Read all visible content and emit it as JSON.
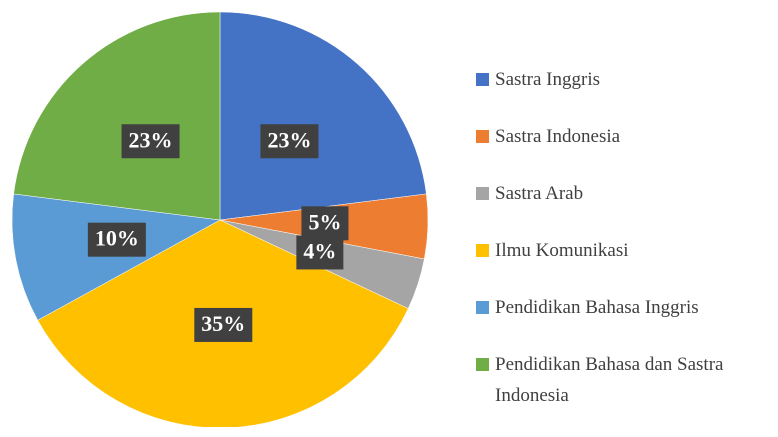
{
  "chart_data": {
    "type": "pie",
    "categories": [
      "Sastra Inggris",
      "Sastra Indonesia",
      "Sastra Arab",
      "Ilmu Komunikasi",
      "Pendidikan Bahasa Inggris",
      "Pendidikan Bahasa dan Sastra Indonesia"
    ],
    "values": [
      23,
      5,
      4,
      35,
      10,
      23
    ],
    "value_labels": [
      "23%",
      "5%",
      "4%",
      "35%",
      "10%",
      "23%"
    ],
    "colors": [
      "#4472c4",
      "#ed7d31",
      "#a5a5a5",
      "#ffc000",
      "#5b9bd5",
      "#70ad47"
    ],
    "legend": "right"
  }
}
